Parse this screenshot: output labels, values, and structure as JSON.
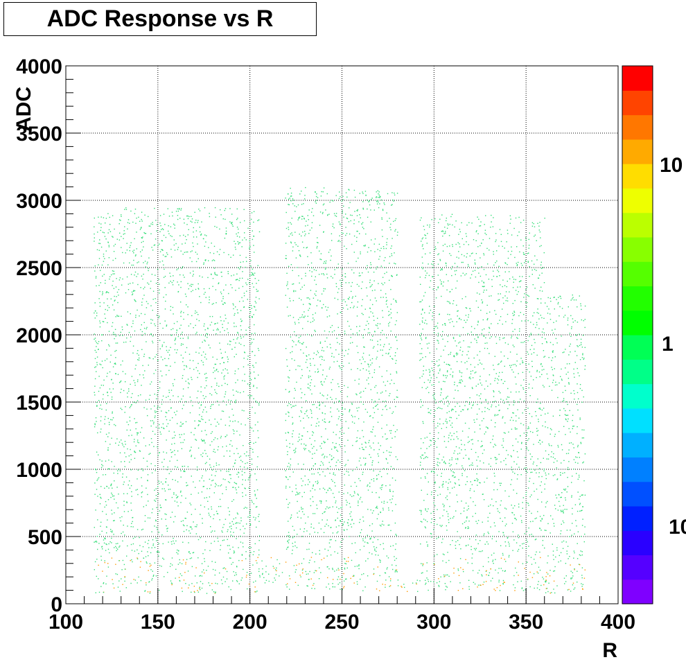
{
  "title": "ADC Response vs R",
  "chart_data": {
    "type": "heatmap",
    "title": "ADC Response vs R",
    "xlabel": "R",
    "ylabel": "ADC",
    "xlim": [
      100,
      400
    ],
    "ylim": [
      0,
      4000
    ],
    "x_ticks": [
      "100",
      "150",
      "200",
      "250",
      "300",
      "350",
      "400"
    ],
    "y_ticks": [
      "0",
      "500",
      "1000",
      "1500",
      "2000",
      "2500",
      "3000",
      "3500",
      "4000"
    ],
    "grid": true,
    "z_scale": "log",
    "colorbar_labels": [
      "10",
      "1",
      "10"
    ],
    "bands": [
      {
        "r_start": 115,
        "r_end": 205,
        "adc_low": 80,
        "adc_high": 2950
      },
      {
        "r_start": 205,
        "r_end": 218,
        "adc_low": 150,
        "adc_high": 380
      },
      {
        "r_start": 219,
        "r_end": 280,
        "adc_low": 100,
        "adc_high": 3100
      },
      {
        "r_start": 280,
        "r_end": 292,
        "adc_low": 90,
        "adc_high": 200
      },
      {
        "r_start": 292,
        "r_end": 360,
        "adc_low": 100,
        "adc_high": 2900
      },
      {
        "r_start": 360,
        "r_end": 382,
        "adc_low": 80,
        "adc_high": 2300
      }
    ],
    "colors": {
      "point": "#33dd77",
      "low_adc_point": "#ff9900",
      "palette": [
        "#7f00ff",
        "#5500ff",
        "#2a00ff",
        "#0020ff",
        "#0050ff",
        "#0080ff",
        "#00b0ff",
        "#00e0ff",
        "#00ffcc",
        "#00ff88",
        "#00ff55",
        "#00ff00",
        "#22ff00",
        "#55ff00",
        "#88ff00",
        "#bbff00",
        "#eeff00",
        "#ffdd00",
        "#ffaa00",
        "#ff7700",
        "#ff4400",
        "#ff0000"
      ]
    }
  }
}
